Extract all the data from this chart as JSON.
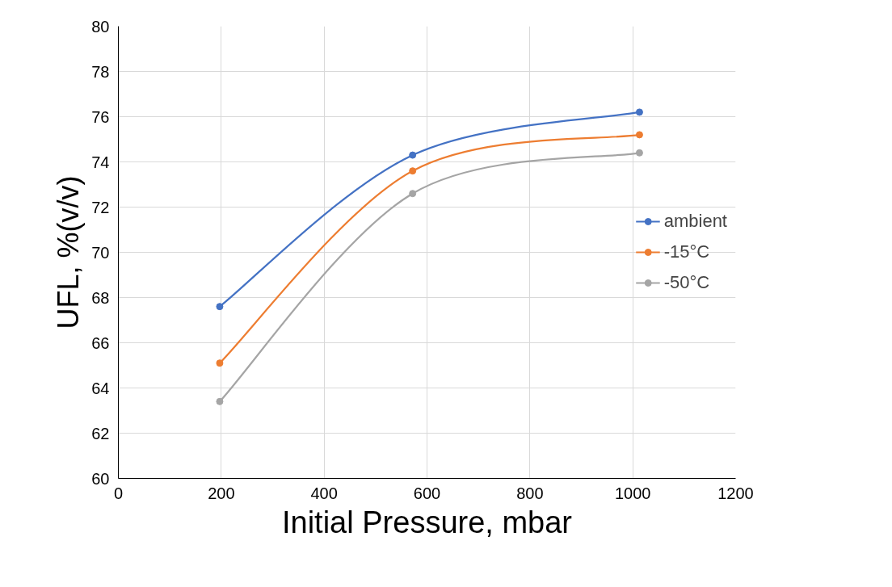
{
  "chart_data": {
    "type": "line",
    "xlabel": "Initial Pressure, mbar",
    "ylabel": "UFL, %(v/v)",
    "x": [
      197,
      572,
      1013
    ],
    "series": [
      {
        "name": "ambient",
        "color": "#4472c4",
        "values": [
          67.6,
          74.3,
          76.2
        ]
      },
      {
        "name": "-15°C",
        "color": "#ed7d31",
        "values": [
          65.1,
          73.6,
          75.2
        ]
      },
      {
        "name": "-50°C",
        "color": "#a5a5a5",
        "values": [
          63.4,
          72.6,
          74.4
        ]
      }
    ],
    "xlim": [
      0,
      1200
    ],
    "xticks": [
      0,
      200,
      400,
      600,
      800,
      1000,
      1200
    ],
    "ylim": [
      60,
      80
    ],
    "yticks": [
      60,
      62,
      64,
      66,
      68,
      70,
      72,
      74,
      76,
      78,
      80
    ],
    "grid": true,
    "legend": "right",
    "marker": "circle",
    "line_style": "solid"
  }
}
